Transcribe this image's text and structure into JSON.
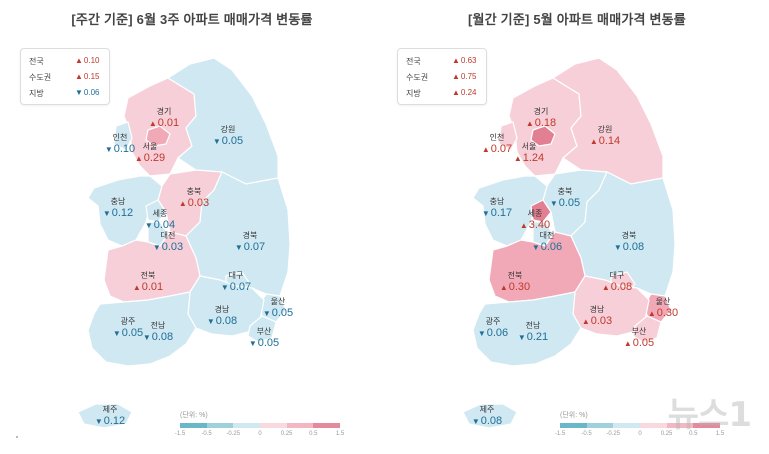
{
  "left": {
    "title": "[주간 기준] 6월 3주 아파트 매매가격 변동률",
    "summary": [
      {
        "label": "전국",
        "value": "0.10",
        "dir": "up"
      },
      {
        "label": "수도권",
        "value": "0.15",
        "dir": "up"
      },
      {
        "label": "지방",
        "value": "0.06",
        "dir": "down"
      }
    ],
    "regions": [
      {
        "name": "경기",
        "value": "0.01",
        "dir": "up"
      },
      {
        "name": "인천",
        "value": "0.10",
        "dir": "down"
      },
      {
        "name": "서울",
        "value": "0.29",
        "dir": "up"
      },
      {
        "name": "강원",
        "value": "0.05",
        "dir": "down"
      },
      {
        "name": "충북",
        "value": "0.03",
        "dir": "up"
      },
      {
        "name": "충남",
        "value": "0.12",
        "dir": "down"
      },
      {
        "name": "세종",
        "value": "0.04",
        "dir": "down"
      },
      {
        "name": "대전",
        "value": "0.03",
        "dir": "down"
      },
      {
        "name": "경북",
        "value": "0.07",
        "dir": "down"
      },
      {
        "name": "전북",
        "value": "0.01",
        "dir": "up"
      },
      {
        "name": "대구",
        "value": "0.07",
        "dir": "down"
      },
      {
        "name": "울산",
        "value": "0.05",
        "dir": "down"
      },
      {
        "name": "경남",
        "value": "0.08",
        "dir": "down"
      },
      {
        "name": "광주",
        "value": "0.05",
        "dir": "down"
      },
      {
        "name": "전남",
        "value": "0.08",
        "dir": "down"
      },
      {
        "name": "부산",
        "value": "0.05",
        "dir": "down"
      },
      {
        "name": "제주",
        "value": "0.12",
        "dir": "down"
      }
    ],
    "legend": {
      "unit": "(단위: %)",
      "ticks": [
        "-1.5",
        "-0.5",
        "-0.25",
        "0",
        "0.25",
        "0.5",
        "1.5"
      ]
    }
  },
  "right": {
    "title": "[월간 기준] 5월 아파트 매매가격 변동률",
    "summary": [
      {
        "label": "전국",
        "value": "0.63",
        "dir": "up"
      },
      {
        "label": "수도권",
        "value": "0.75",
        "dir": "up"
      },
      {
        "label": "지방",
        "value": "0.24",
        "dir": "up"
      }
    ],
    "regions": [
      {
        "name": "경기",
        "value": "0.18",
        "dir": "up"
      },
      {
        "name": "인천",
        "value": "0.07",
        "dir": "up"
      },
      {
        "name": "서울",
        "value": "1.24",
        "dir": "up"
      },
      {
        "name": "강원",
        "value": "0.14",
        "dir": "up"
      },
      {
        "name": "충북",
        "value": "0.05",
        "dir": "down"
      },
      {
        "name": "충남",
        "value": "0.17",
        "dir": "down"
      },
      {
        "name": "세종",
        "value": "3.40",
        "dir": "up"
      },
      {
        "name": "대전",
        "value": "0.06",
        "dir": "down"
      },
      {
        "name": "경북",
        "value": "0.08",
        "dir": "down"
      },
      {
        "name": "전북",
        "value": "0.30",
        "dir": "up"
      },
      {
        "name": "대구",
        "value": "0.08",
        "dir": "up"
      },
      {
        "name": "울산",
        "value": "0.30",
        "dir": "up"
      },
      {
        "name": "경남",
        "value": "0.03",
        "dir": "up"
      },
      {
        "name": "광주",
        "value": "0.06",
        "dir": "down"
      },
      {
        "name": "전남",
        "value": "0.21",
        "dir": "down"
      },
      {
        "name": "부산",
        "value": "0.05",
        "dir": "up"
      },
      {
        "name": "제주",
        "value": "0.08",
        "dir": "down"
      }
    ],
    "legend": {
      "unit": "(단위: %)",
      "ticks": [
        "-1.5",
        "-0.5",
        "-0.25",
        "0",
        "0.25",
        "0.5",
        "1.5"
      ]
    }
  },
  "colors": {
    "down": "#cfe8f1",
    "down_outline": "#ffffff",
    "up_light": "#f7cfd8",
    "up_mid": "#f2a9b7",
    "up_strong": "#e37f92",
    "text_up": "#c0392b",
    "text_down": "#1f6f97",
    "legend": [
      "#6ab7c8",
      "#9fd0dc",
      "#cfe8f1",
      "#f7d9df",
      "#f2b7c3",
      "#e38b9d"
    ]
  },
  "watermark": "뉴스1"
}
